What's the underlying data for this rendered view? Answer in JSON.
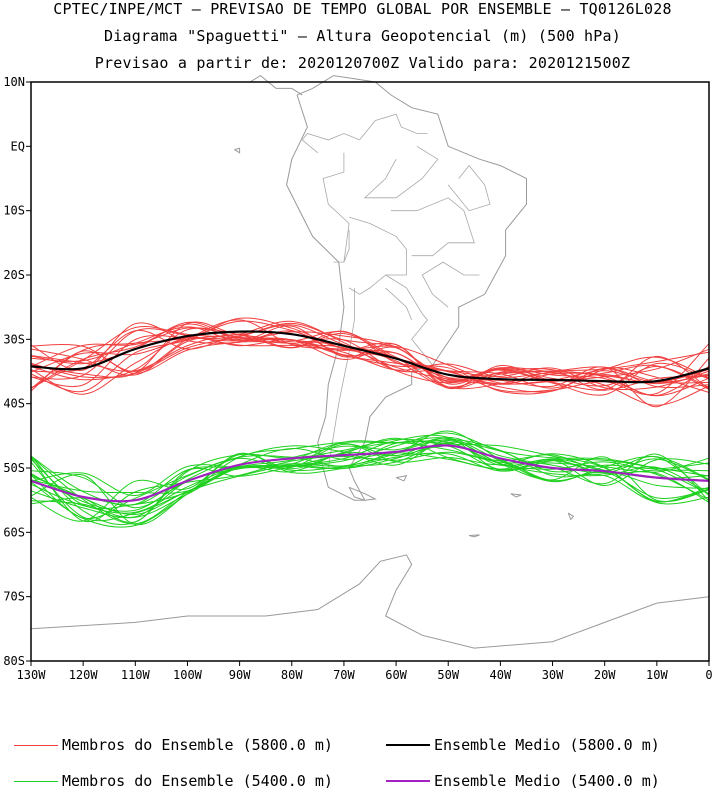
{
  "title": {
    "line1": "CPTEC/INPE/MCT – PREVISAO DE TEMPO GLOBAL POR ENSEMBLE – TQ0126L028",
    "line2": "Diagrama \"Spaguetti\" – Altura Geopotencial (m) (500 hPa)",
    "line3": "Previsao a partir de: 2020120700Z  Valido para: 2020121500Z"
  },
  "legend": [
    {
      "label": "Membros do Ensemble (5800.0 m)",
      "color": "#f04040"
    },
    {
      "label": "Ensemble Medio (5800.0 m)",
      "color": "#000000"
    },
    {
      "label": "Membros do Ensemble (5400.0 m)",
      "color": "#20d020"
    },
    {
      "label": "Ensemble Medio (5400.0 m)",
      "color": "#a020c0"
    }
  ],
  "chart_data": {
    "type": "line",
    "xlim": [
      -130,
      0
    ],
    "ylim": [
      -80,
      10
    ],
    "x_ticks": [
      {
        "v": -130,
        "label": "130W"
      },
      {
        "v": -120,
        "label": "120W"
      },
      {
        "v": -110,
        "label": "110W"
      },
      {
        "v": -100,
        "label": "100W"
      },
      {
        "v": -90,
        "label": "90W"
      },
      {
        "v": -80,
        "label": "80W"
      },
      {
        "v": -70,
        "label": "70W"
      },
      {
        "v": -60,
        "label": "60W"
      },
      {
        "v": -50,
        "label": "50W"
      },
      {
        "v": -40,
        "label": "40W"
      },
      {
        "v": -30,
        "label": "30W"
      },
      {
        "v": -20,
        "label": "20W"
      },
      {
        "v": -10,
        "label": "10W"
      },
      {
        "v": 0,
        "label": "0"
      }
    ],
    "y_ticks": [
      {
        "v": 10,
        "label": "10N"
      },
      {
        "v": 0,
        "label": "EQ"
      },
      {
        "v": -10,
        "label": "10S"
      },
      {
        "v": -20,
        "label": "20S"
      },
      {
        "v": -30,
        "label": "30S"
      },
      {
        "v": -40,
        "label": "40S"
      },
      {
        "v": -50,
        "label": "50S"
      },
      {
        "v": -60,
        "label": "60S"
      },
      {
        "v": -70,
        "label": "70S"
      },
      {
        "v": -80,
        "label": "80S"
      }
    ],
    "x": [
      -130,
      -120,
      -110,
      -100,
      -90,
      -80,
      -70,
      -60,
      -50,
      -40,
      -30,
      -20,
      -10,
      0
    ],
    "series": [
      {
        "name": "Ensemble Medio (5800.0 m)",
        "color": "#000000",
        "values": [
          -34.2,
          -34.5,
          -31.5,
          -29.5,
          -28.8,
          -29.2,
          -31.0,
          -33.0,
          -35.5,
          -36.2,
          -36.3,
          -36.5,
          -36.5,
          -34.5
        ]
      },
      {
        "name": "Ensemble Medio (5400.0 m)",
        "color": "#a020c0",
        "values": [
          -52.0,
          -54.5,
          -55.0,
          -52.0,
          -49.5,
          -48.5,
          -48.0,
          -47.5,
          -46.5,
          -48.5,
          -50.0,
          -50.5,
          -51.5,
          -52.0
        ]
      }
    ],
    "member_groups": [
      {
        "name": "Membros do Ensemble (5800.0 m)",
        "color": "#f04040",
        "base_series": 0,
        "count": 20
      },
      {
        "name": "Membros do Ensemble (5400.0 m)",
        "color": "#20d020",
        "base_series": 1,
        "count": 20
      }
    ]
  }
}
